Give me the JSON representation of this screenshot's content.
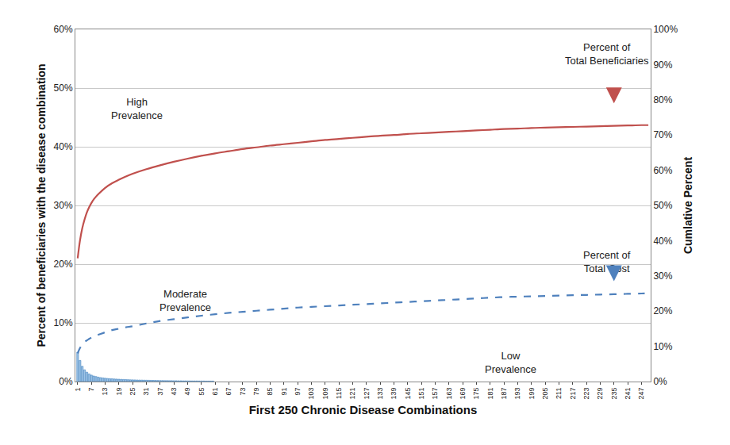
{
  "chart_data": {
    "type": "bar",
    "x_label": "First 250 Chronic Disease Combinations",
    "y_label": "Percent of beneficiaries with the disease combination",
    "y2_label": "Cumlative Percent",
    "xlim": [
      0,
      251
    ],
    "xticks": [
      1,
      7,
      13,
      19,
      25,
      31,
      37,
      43,
      49,
      55,
      61,
      67,
      73,
      79,
      85,
      91,
      97,
      103,
      109,
      115,
      121,
      127,
      133,
      139,
      145,
      151,
      157,
      163,
      169,
      175,
      181,
      187,
      193,
      199,
      205,
      211,
      217,
      223,
      229,
      235,
      241,
      247
    ],
    "ylim": [
      0,
      60
    ],
    "yticks": [
      {
        "value": 0,
        "label": "0%"
      },
      {
        "value": 10,
        "label": "10%"
      },
      {
        "value": 20,
        "label": "20%"
      },
      {
        "value": 30,
        "label": "30%"
      },
      {
        "value": 40,
        "label": "40%"
      },
      {
        "value": 50,
        "label": "50%"
      },
      {
        "value": 60,
        "label": "60%"
      }
    ],
    "y2lim": [
      0,
      100
    ],
    "y2ticks": [
      {
        "value": 0,
        "label": "0%"
      },
      {
        "value": 10,
        "label": "10%"
      },
      {
        "value": 20,
        "label": "20%"
      },
      {
        "value": 30,
        "label": "30%"
      },
      {
        "value": 40,
        "label": "40%"
      },
      {
        "value": 50,
        "label": "50%"
      },
      {
        "value": 60,
        "label": "60%"
      },
      {
        "value": 70,
        "label": "70%"
      },
      {
        "value": 80,
        "label": "80%"
      },
      {
        "value": 90,
        "label": "90%"
      },
      {
        "value": 100,
        "label": "100%"
      }
    ],
    "grid": true,
    "series": [
      {
        "type": "bar",
        "color": "#9dc3e6",
        "x": [
          1,
          2,
          3,
          4,
          5,
          6,
          7,
          8,
          9,
          10,
          11,
          12,
          13,
          14,
          15,
          16,
          17,
          18,
          19,
          20,
          21,
          22,
          23,
          24,
          25,
          26,
          27,
          28,
          29,
          30,
          31,
          32,
          33,
          34,
          35,
          36,
          37,
          38,
          39,
          40,
          41,
          42,
          43,
          44,
          45,
          46,
          47,
          48,
          49,
          50,
          51,
          52,
          53,
          54,
          55,
          56,
          57,
          58,
          59,
          60
        ],
        "values": [
          5.0,
          3.6,
          2.6,
          2.0,
          1.6,
          1.3,
          1.1,
          0.95,
          0.85,
          0.75,
          0.68,
          0.62,
          0.57,
          0.53,
          0.5,
          0.47,
          0.44,
          0.42,
          0.4,
          0.38,
          0.36,
          0.34,
          0.32,
          0.3,
          0.29,
          0.28,
          0.27,
          0.26,
          0.25,
          0.24,
          0.23,
          0.22,
          0.21,
          0.2,
          0.19,
          0.18,
          0.17,
          0.17,
          0.16,
          0.16,
          0.15,
          0.15,
          0.14,
          0.14,
          0.13,
          0.13,
          0.12,
          0.12,
          0.11,
          0.11,
          0.1,
          0.1,
          0.1,
          0.09,
          0.09,
          0.09,
          0.08,
          0.08,
          0.08,
          0.08
        ]
      },
      {
        "type": "line",
        "axis": "y2",
        "color": "#c0504d",
        "line_style": "solid",
        "x": [
          1,
          2,
          3,
          4,
          5,
          6,
          7,
          8,
          9,
          10,
          13,
          16,
          19,
          22,
          25,
          31,
          37,
          43,
          49,
          55,
          61,
          67,
          73,
          79,
          85,
          91,
          97,
          103,
          109,
          115,
          121,
          127,
          133,
          139,
          145,
          151,
          157,
          163,
          169,
          175,
          181,
          187,
          193,
          199,
          205,
          211,
          217,
          223,
          229,
          235,
          241,
          247,
          250
        ],
        "values": [
          35,
          40,
          43.5,
          46,
          48,
          49.5,
          50.7,
          51.7,
          52.5,
          53.2,
          55,
          56.3,
          57.3,
          58.2,
          59,
          60.3,
          61.4,
          62.4,
          63.3,
          64.1,
          64.8,
          65.4,
          66,
          66.5,
          67,
          67.4,
          67.8,
          68.2,
          68.6,
          68.9,
          69.2,
          69.5,
          69.8,
          70,
          70.3,
          70.5,
          70.7,
          70.9,
          71.1,
          71.3,
          71.5,
          71.7,
          71.8,
          72,
          72.1,
          72.2,
          72.3,
          72.4,
          72.5,
          72.6,
          72.7,
          72.8,
          72.8
        ]
      },
      {
        "type": "line",
        "axis": "y2",
        "color": "#4f81bd",
        "line_style": "dashed",
        "x": [
          1,
          2,
          3,
          4,
          5,
          6,
          7,
          8,
          9,
          10,
          13,
          16,
          19,
          22,
          25,
          31,
          37,
          43,
          49,
          55,
          61,
          67,
          73,
          79,
          85,
          91,
          97,
          103,
          109,
          115,
          121,
          127,
          133,
          139,
          145,
          151,
          157,
          163,
          169,
          175,
          181,
          187,
          193,
          199,
          205,
          211,
          217,
          223,
          229,
          235,
          241,
          247,
          250
        ],
        "values": [
          8,
          9.5,
          10.5,
          11.2,
          11.7,
          12.1,
          12.5,
          12.8,
          13.1,
          13.3,
          14,
          14.6,
          15,
          15.4,
          15.7,
          16.5,
          17.2,
          17.7,
          18.2,
          18.7,
          19.1,
          19.5,
          19.8,
          20.1,
          20.4,
          20.7,
          21,
          21.2,
          21.4,
          21.6,
          21.8,
          22,
          22.2,
          22.4,
          22.6,
          22.8,
          23,
          23.2,
          23.4,
          23.6,
          23.8,
          24,
          24.1,
          24.2,
          24.3,
          24.4,
          24.5,
          24.6,
          24.7,
          24.8,
          24.9,
          25,
          25.1
        ]
      }
    ],
    "annotations": [
      {
        "text": "High\nPrevalence"
      },
      {
        "text": "Moderate\nPrevalence"
      },
      {
        "text": "Low\nPrevalence"
      },
      {
        "text": "Percent of\nTotal Beneficiaries"
      },
      {
        "text": "Percent of\nTotal Cost"
      }
    ]
  }
}
